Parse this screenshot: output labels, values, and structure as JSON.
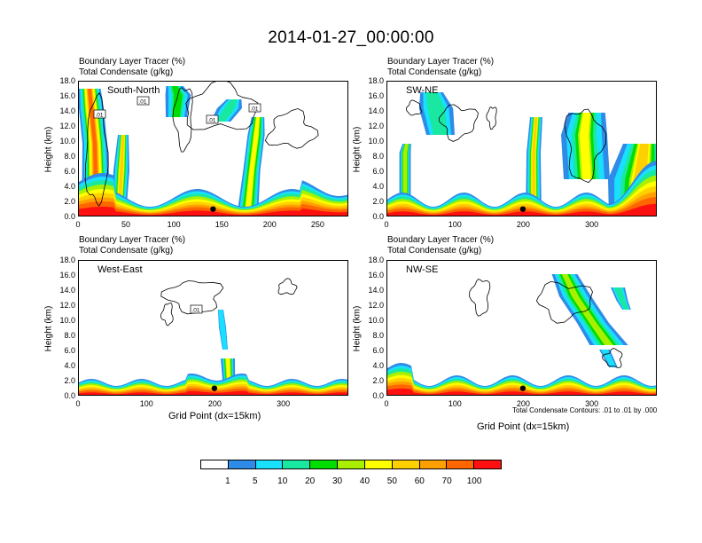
{
  "title": "2014-01-27_00:00:00",
  "panel_title_left": "Boundary Layer Tracer   (%)",
  "panel_title_left2": "Total Condensate   (g/kg)",
  "y_axis_label": "Height (km)",
  "x_axis_label": "Grid Point (dx=15km)",
  "contour_note": "Total Condensate Contours: .01 to .01 by .000",
  "colors": {
    "levels": [
      "#ffffff",
      "#2f8be8",
      "#19e0ff",
      "#19e8a0",
      "#00dd00",
      "#a8f000",
      "#ffff00",
      "#ffd000",
      "#ffa000",
      "#ff6600",
      "#ff1010"
    ],
    "level_labels": [
      "1",
      "5",
      "10",
      "20",
      "30",
      "40",
      "50",
      "60",
      "70",
      "100"
    ]
  },
  "chart_data": [
    {
      "type": "heatmap",
      "label": "South-North",
      "title_line1": "Boundary Layer Tracer   (%)",
      "title_line2": "Total Condensate   (g/kg)",
      "x_ticks": [
        "0",
        "50",
        "100",
        "150",
        "200",
        "250"
      ],
      "y_ticks": [
        "0.0",
        "2.0",
        "4.0",
        "6.0",
        "8.0",
        "10.0",
        "12.0",
        "14.0",
        "16.0",
        "18.0"
      ],
      "xlim": [
        0,
        282
      ],
      "ylim": [
        0,
        18
      ],
      "contour_labels": [
        ".01",
        ".01",
        ".01",
        ".01"
      ],
      "marker_x": 140
    },
    {
      "type": "heatmap",
      "label": "SW-NE",
      "title_line1": "Boundary Layer Tracer   (%)",
      "title_line2": "Total Condensate   (g/kg)",
      "x_ticks": [
        "0",
        "100",
        "200",
        "300"
      ],
      "y_ticks": [
        "0.0",
        "2.0",
        "4.0",
        "6.0",
        "8.0",
        "10.0",
        "12.0",
        "14.0",
        "16.0",
        "18.0"
      ],
      "xlim": [
        0,
        395
      ],
      "ylim": [
        0,
        18
      ],
      "contour_labels": [],
      "marker_x": 198
    },
    {
      "type": "heatmap",
      "label": "West-East",
      "title_line1": "Boundary Layer Tracer   (%)",
      "title_line2": "Total Condensate   (g/kg)",
      "x_ticks": [
        "0",
        "100",
        "200",
        "300"
      ],
      "y_ticks": [
        "0.0",
        "2.0",
        "4.0",
        "6.0",
        "8.0",
        "10.0",
        "12.0",
        "14.0",
        "16.0",
        "18.0"
      ],
      "xlim": [
        0,
        395
      ],
      "ylim": [
        0,
        18
      ],
      "contour_labels": [
        ".01"
      ],
      "marker_x": 198
    },
    {
      "type": "heatmap",
      "label": "NW-SE",
      "title_line1": "Boundary Layer Tracer   (%)",
      "title_line2": "Total Condensate   (g/kg)",
      "x_ticks": [
        "0",
        "100",
        "200",
        "300"
      ],
      "y_ticks": [
        "0.0",
        "2.0",
        "4.0",
        "6.0",
        "8.0",
        "10.0",
        "12.0",
        "14.0",
        "16.0",
        "18.0"
      ],
      "xlim": [
        0,
        395
      ],
      "ylim": [
        0,
        18
      ],
      "contour_labels": [],
      "marker_x": 198
    }
  ]
}
